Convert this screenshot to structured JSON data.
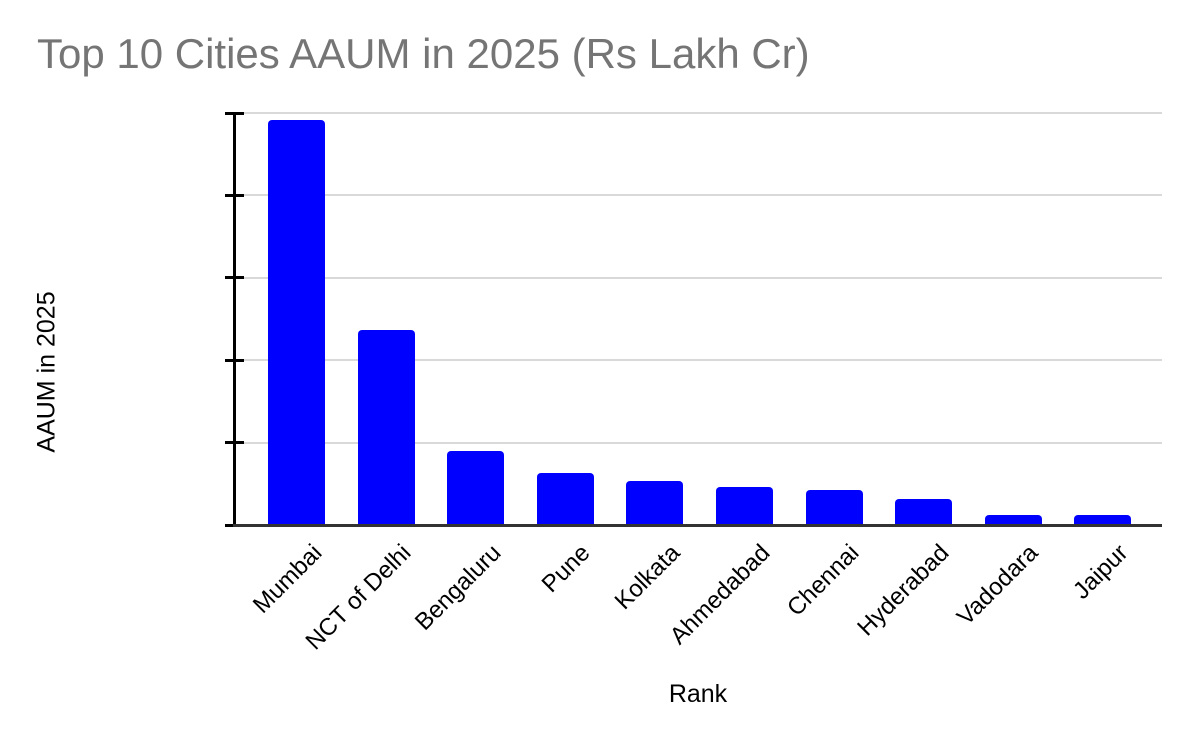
{
  "page": {
    "background": "#ffffff"
  },
  "chart_data": {
    "type": "bar",
    "title": "Top 10 Cities AAUM in 2025 (Rs Lakh Cr)",
    "xlabel": "Rank",
    "ylabel": "AAUM in 2025",
    "categories": [
      "Mumbai",
      "NCT of Delhi",
      "Bengaluru",
      "Pune",
      "Kolkata",
      "Ahmedabad",
      "Chennai",
      "Hyderabad",
      "Vadodara",
      "Jaipur"
    ],
    "values": [
      2460000,
      1185000,
      452000,
      315000,
      265000,
      232000,
      215000,
      158000,
      60000,
      62000
    ],
    "ylim": [
      0,
      2500000
    ],
    "yticks": [
      0,
      500000,
      1000000,
      1500000,
      2000000,
      2500000
    ],
    "ytick_labels": [
      "0",
      "500,000",
      "1,000,000",
      "1,500,000",
      "2,000,000",
      "2,500,000"
    ],
    "grid": true,
    "legend": "none",
    "colors": {
      "bar": "#0000ff",
      "gridline": "#d9d9d9",
      "axis_line": "#000000",
      "baseline": "#333333",
      "tick_label": "#000000",
      "title": "#757575"
    }
  }
}
